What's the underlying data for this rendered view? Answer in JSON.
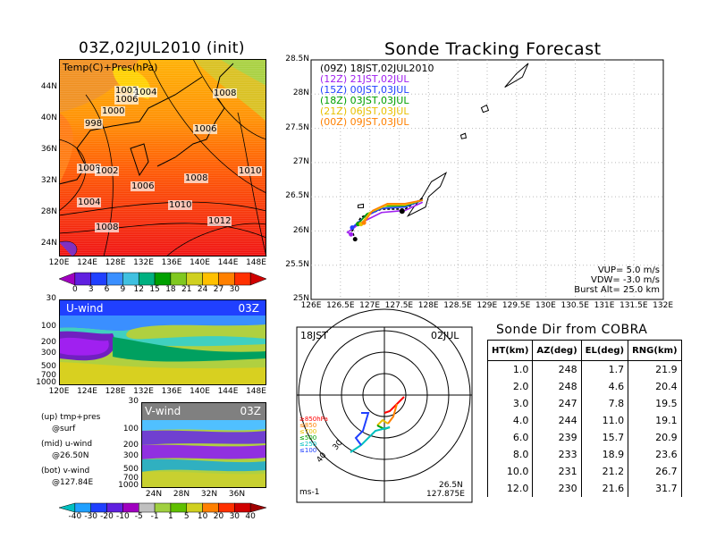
{
  "left_panel": {
    "title": "03Z,02JUL2010 (init)",
    "top_map": {
      "label": "Temp(C)+Pres(hPa)",
      "lat_ticks": [
        "44N",
        "40N",
        "36N",
        "32N",
        "28N",
        "24N"
      ],
      "lon_ticks": [
        "120E",
        "124E",
        "128E",
        "132E",
        "136E",
        "140E",
        "144E",
        "148E"
      ],
      "isobar_labels": [
        "1002",
        "1004",
        "1006",
        "1008",
        "1000",
        "998",
        "1006",
        "1000",
        "1002",
        "1008",
        "1006",
        "1004",
        "1008",
        "1010",
        "1010",
        "1012"
      ],
      "colorbar_ticks": [
        "0",
        "3",
        "6",
        "9",
        "12",
        "15",
        "18",
        "21",
        "24",
        "27",
        "30"
      ]
    },
    "u_wind": {
      "label": "U-wind",
      "time": "03Z",
      "p_ticks": [
        "30",
        "100",
        "200",
        "300",
        "500",
        "700",
        "1000"
      ],
      "lon_ticks": [
        "120E",
        "124E",
        "128E",
        "132E",
        "136E",
        "140E",
        "144E",
        "148E"
      ]
    },
    "v_wind": {
      "label": "V-wind",
      "time": "03Z",
      "p_ticks": [
        "30",
        "100",
        "200",
        "300",
        "500",
        "700",
        "1000"
      ],
      "lat_ticks": [
        "24N",
        "28N",
        "32N",
        "36N"
      ],
      "colorbar_ticks": [
        "-40",
        "-30",
        "-20",
        "-10",
        "-5",
        "-1",
        "1",
        "5",
        "10",
        "20",
        "30",
        "40"
      ]
    },
    "notes": [
      "(up) tmp+pres",
      "@surf",
      "(mid) u-wind",
      "@26.50N",
      "(bot) v-wind",
      "@127.84E"
    ]
  },
  "track": {
    "title": "Sonde Tracking Forecast",
    "lat_ticks": [
      "28.5N",
      "28N",
      "27.5N",
      "27N",
      "26.5N",
      "26N",
      "25.5N",
      "25N"
    ],
    "lon_ticks": [
      "126E",
      "126.5E",
      "127E",
      "127.5E",
      "128E",
      "128.5E",
      "129E",
      "129.5E",
      "130E",
      "130.5E",
      "131E",
      "131.5E",
      "132E"
    ],
    "legend": [
      {
        "label": "(09Z)  18JST,02JUL2010",
        "color": "#000000"
      },
      {
        "label": "(12Z)  21JST,02JUL",
        "color": "#a020f0"
      },
      {
        "label": "(15Z)  00JST,03JUL",
        "color": "#2040ff"
      },
      {
        "label": "(18Z)  03JST,03JUL",
        "color": "#00a000"
      },
      {
        "label": "(21Z)  06JST,03JUL",
        "color": "#e8c000"
      },
      {
        "label": "(00Z)  09JST,03JUL",
        "color": "#ff8000"
      }
    ],
    "params": [
      "VUP=  5.0 m/s",
      "VDW= -3.0 m/s",
      "Burst Alt= 25.0 km"
    ]
  },
  "hodograph": {
    "time_label": "18JST",
    "date_label": "02JUL",
    "levels": [
      {
        "label": "≥850hPa",
        "color": "#ff0000"
      },
      {
        "label": "≤850",
        "color": "#ff8000"
      },
      {
        "label": "≤700",
        "color": "#e8c000"
      },
      {
        "label": "≤500",
        "color": "#00a000"
      },
      {
        "label": "≤250",
        "color": "#00c0c0"
      },
      {
        "label": "≤100",
        "color": "#2040ff"
      }
    ],
    "ring_labels": [
      "40",
      "30"
    ],
    "units": "ms-1",
    "location": [
      "26.5N",
      "127.875E"
    ]
  },
  "sonde_dir": {
    "title": "Sonde Dir from COBRA",
    "headers": [
      "HT(km)",
      "AZ(deg)",
      "EL(deg)",
      "RNG(km)"
    ],
    "rows": [
      [
        "1.0",
        "248",
        "1.7",
        "21.9"
      ],
      [
        "2.0",
        "248",
        "4.6",
        "20.4"
      ],
      [
        "3.0",
        "247",
        "7.8",
        "19.5"
      ],
      [
        "4.0",
        "244",
        "11.0",
        "19.1"
      ],
      [
        "6.0",
        "239",
        "15.7",
        "20.9"
      ],
      [
        "8.0",
        "233",
        "18.9",
        "23.6"
      ],
      [
        "10.0",
        "231",
        "21.2",
        "26.7"
      ],
      [
        "12.0",
        "230",
        "21.6",
        "31.7"
      ]
    ]
  },
  "chart_data": [
    {
      "type": "heatmap",
      "title": "03Z,02JUL2010 (init)",
      "xlabel": "",
      "ylabel": "",
      "x_range": [
        "120E",
        "149E"
      ],
      "y_range": [
        "22N",
        "47N"
      ],
      "colorbar": [
        0,
        3,
        6,
        9,
        12,
        15,
        18,
        21,
        24,
        27,
        30
      ],
      "isobars": [
        998,
        1000,
        1002,
        1004,
        1006,
        1008,
        1010,
        1012
      ]
    },
    {
      "type": "heatmap",
      "title": "U-wind",
      "x_range": [
        "120E",
        "149E"
      ],
      "y_range": [
        1000,
        30
      ]
    },
    {
      "type": "heatmap",
      "title": "V-wind",
      "x_range": [
        "22N",
        "39N"
      ],
      "y_range": [
        1000,
        30
      ],
      "colorbar": [
        -40,
        -30,
        -20,
        -10,
        -5,
        -1,
        1,
        5,
        10,
        20,
        30,
        40
      ]
    },
    {
      "type": "line",
      "title": "Sonde Tracking Forecast",
      "xlim": [
        126,
        132
      ],
      "ylim": [
        25,
        28.5
      ],
      "series": [
        {
          "name": "(09Z)  18JST,02JUL2010",
          "x": [
            127.9,
            127.6,
            127.2,
            126.85,
            126.7,
            126.75
          ],
          "y": [
            26.48,
            26.32,
            26.32,
            26.2,
            26.0,
            25.88
          ]
        },
        {
          "name": "(12Z)  21JST,02JUL",
          "x": [
            127.9,
            127.6,
            127.2,
            126.85,
            126.62,
            126.68
          ],
          "y": [
            26.42,
            26.3,
            26.27,
            26.12,
            25.98,
            25.95
          ]
        },
        {
          "name": "(15Z)  00JST,03JUL",
          "x": [
            127.9,
            127.6,
            127.2,
            126.9,
            126.7
          ],
          "y": [
            26.45,
            26.35,
            26.33,
            26.2,
            26.05
          ]
        },
        {
          "name": "(18Z)  03JST,03JUL",
          "x": [
            127.9,
            127.6,
            127.25,
            126.95,
            126.8
          ],
          "y": [
            26.45,
            26.37,
            26.36,
            26.25,
            26.1
          ]
        },
        {
          "name": "(21Z)  06JST,03JUL",
          "x": [
            127.9,
            127.6,
            127.3,
            127.0,
            126.85
          ],
          "y": [
            26.45,
            26.38,
            26.38,
            26.27,
            26.1
          ]
        },
        {
          "name": "(00Z)  09JST,03JUL",
          "x": [
            127.9,
            127.6,
            127.3,
            127.05,
            126.9
          ],
          "y": [
            26.45,
            26.4,
            26.4,
            26.3,
            26.12
          ]
        }
      ]
    },
    {
      "type": "table",
      "title": "Sonde Dir from COBRA",
      "columns": [
        "HT(km)",
        "AZ(deg)",
        "EL(deg)",
        "RNG(km)"
      ],
      "rows": [
        [
          1.0,
          248,
          1.7,
          21.9
        ],
        [
          2.0,
          248,
          4.6,
          20.4
        ],
        [
          3.0,
          247,
          7.8,
          19.5
        ],
        [
          4.0,
          244,
          11.0,
          19.1
        ],
        [
          6.0,
          239,
          15.7,
          20.9
        ],
        [
          8.0,
          233,
          18.9,
          23.6
        ],
        [
          10.0,
          231,
          21.2,
          26.7
        ],
        [
          12.0,
          230,
          21.6,
          31.7
        ]
      ]
    }
  ]
}
